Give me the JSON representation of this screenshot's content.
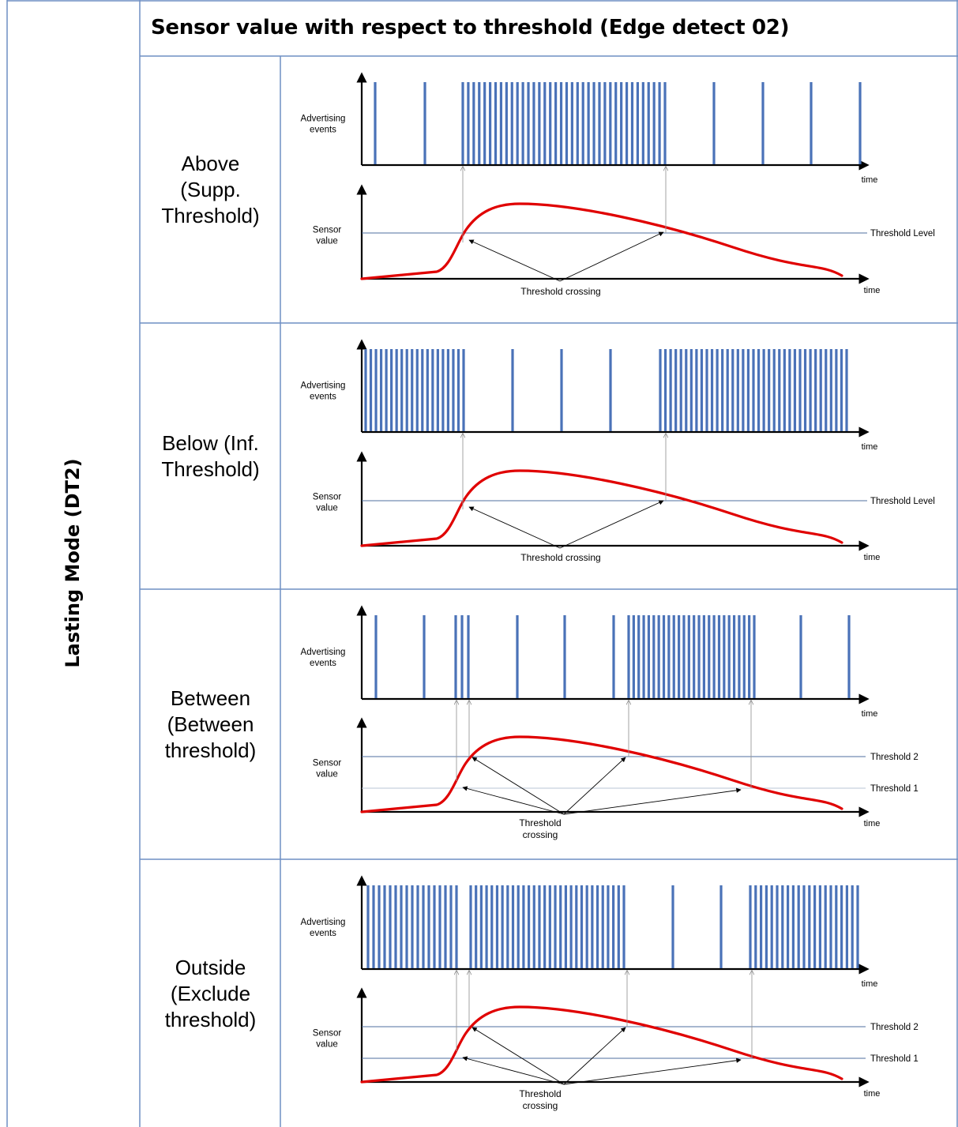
{
  "header": {
    "title": "Sensor value with respect to threshold (Edge detect 02)"
  },
  "side_label": "Lasting Mode (DT2)",
  "labels": {
    "advertising": "Advertising events",
    "advertising_line1": "Advertising",
    "advertising_line2": "events",
    "sensor_line1": "Sensor",
    "sensor_line2": "value",
    "time": "time",
    "crossing": "Threshold crossing",
    "crossing_line1": "Threshold",
    "crossing_line2": "crossing",
    "threshold_level": "Threshold Level",
    "threshold_1": "Threshold 1",
    "threshold_2": "Threshold 2"
  },
  "colors": {
    "event_bar": "#4a72b8",
    "sensor_curve": "#e00000",
    "threshold_line": "#4f6f9f",
    "grid_line": "#6f8fc4"
  },
  "rows": [
    {
      "id": "above",
      "label_lines": [
        "Above",
        "(Supp.",
        "Threshold)"
      ],
      "thresholds": 1,
      "crossing_text_lines": 1
    },
    {
      "id": "below",
      "label_lines": [
        "Below (Inf.",
        "Threshold)"
      ],
      "thresholds": 1,
      "crossing_text_lines": 1
    },
    {
      "id": "between",
      "label_lines": [
        "Between",
        "(Between",
        "threshold)"
      ],
      "thresholds": 2,
      "crossing_text_lines": 2
    },
    {
      "id": "outside",
      "label_lines": [
        "Outside",
        "(Exclude",
        "threshold)"
      ],
      "thresholds": 2,
      "crossing_text_lines": 2
    }
  ]
}
